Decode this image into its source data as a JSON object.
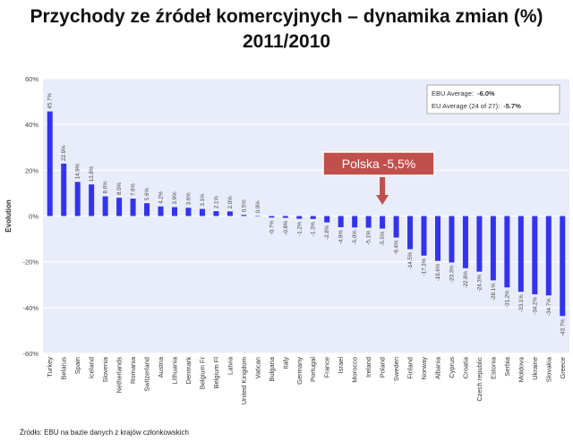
{
  "title_line1": "Przychody ze źródeł komercyjnych – dynamika zmian (%)",
  "title_line2": "2011/2010",
  "source": "Źródło: EBU na bazie danych z krajów członkowskich",
  "legend": {
    "line1_label": "EBU Average:",
    "line1_value": "-6.0%",
    "line2_label": "EU Average (24 of 27):",
    "line2_value": "-5.7%"
  },
  "callout": {
    "text": "Polska -5,5%",
    "target": "Poland"
  },
  "colors": {
    "bar": "#3333ee",
    "plot_bg": "#e9edf9",
    "callout_bg": "#c0504d",
    "arrow": "#c0504d",
    "grid": "#ffffff"
  },
  "chart_data": {
    "type": "bar",
    "title": "Przychody ze źródeł komercyjnych – dynamika zmian (%) 2011/2010",
    "ylabel": "Evolution",
    "xlabel": "",
    "ylim": [
      -60,
      60
    ],
    "yticks": [
      "60%",
      "40%",
      "20%",
      "0%",
      "-20%",
      "-40%",
      "-60%"
    ],
    "ytick_values": [
      60,
      40,
      20,
      0,
      -20,
      -40,
      -60
    ],
    "categories": [
      "Turkey",
      "Belarus",
      "Spain",
      "Iceland",
      "Slovenia",
      "Netherlands",
      "Romania",
      "Switzerland",
      "Austria",
      "Lithuania",
      "Denmark",
      "Belgium Fr",
      "Belgium Fl",
      "Latvia",
      "United Kingdom",
      "Vatican",
      "Bulgaria",
      "Italy",
      "Germany",
      "Portugal",
      "France",
      "Israel",
      "Morocco",
      "Ireland",
      "Poland",
      "Sweden",
      "Finland",
      "Norway",
      "Albania",
      "Cyprus",
      "Croatia",
      "Czech republic",
      "Estonia",
      "Serbia",
      "Moldova",
      "Ukraine",
      "Slovakia",
      "Greece"
    ],
    "values": [
      45.7,
      22.9,
      14.9,
      13.8,
      8.6,
      8.0,
      7.6,
      5.6,
      4.2,
      3.9,
      3.6,
      3.1,
      2.1,
      2.0,
      0.5,
      0.0,
      -0.7,
      -0.8,
      -1.2,
      -1.3,
      -2.8,
      -4.9,
      -5.0,
      -5.1,
      -5.5,
      -9.4,
      -14.5,
      -17.3,
      -19.6,
      -20.3,
      -22.8,
      -24.3,
      -28.1,
      -31.2,
      -33.1,
      -34.2,
      -34.7,
      -43.7
    ],
    "value_labels": [
      "45.7%",
      "22.9%",
      "14.9%",
      "13.8%",
      "8.6%",
      "8.0%",
      "7.6%",
      "5.6%",
      "4.2%",
      "3.9%",
      "3.6%",
      "3.1%",
      "2.1%",
      "2.0%",
      "0.5%",
      "0.0%",
      "-0.7%",
      "-0.8%",
      "-1.2%",
      "-1.3%",
      "-2.8%",
      "-4.9%",
      "-5.0%",
      "-5.1%",
      "-5.5%",
      "-9.4%",
      "-14.5%",
      "-17.3%",
      "-19.6%",
      "-20.3%",
      "-22.8%",
      "-24.3%",
      "-28.1%",
      "-31.2%",
      "-33.1%",
      "-34.2%",
      "-34.7%",
      "-43.7%"
    ],
    "grid": true,
    "legend": "top-right"
  }
}
